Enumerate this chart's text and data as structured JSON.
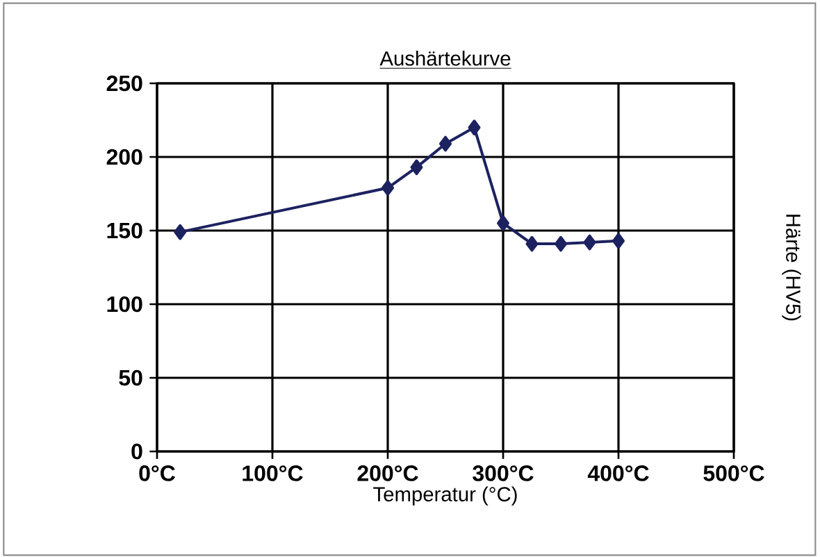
{
  "chart_data": {
    "type": "line",
    "title": "Aushärtekurve",
    "xlabel": "Temperatur (°C)",
    "ylabel": "Härte (HV5)",
    "series": [
      {
        "color": "#1c2260",
        "x": [
          20,
          200,
          225,
          250,
          275,
          300,
          325,
          350,
          375,
          400
        ],
        "values": [
          149,
          179,
          193,
          209,
          220,
          155,
          141,
          141,
          142,
          143
        ]
      }
    ],
    "xlim": [
      0,
      500
    ],
    "xticks": [
      {
        "value": 0,
        "label": "0°C"
      },
      {
        "value": 100,
        "label": "100°C"
      },
      {
        "value": 200,
        "label": "200°C"
      },
      {
        "value": 300,
        "label": "300°C"
      },
      {
        "value": 400,
        "label": "400°C"
      },
      {
        "value": 500,
        "label": "500°C"
      }
    ],
    "ylim": [
      0,
      250
    ],
    "yticks": [
      0,
      50,
      100,
      150,
      200,
      250
    ],
    "grid": true,
    "marker": "diamond",
    "line_style": "solid"
  }
}
